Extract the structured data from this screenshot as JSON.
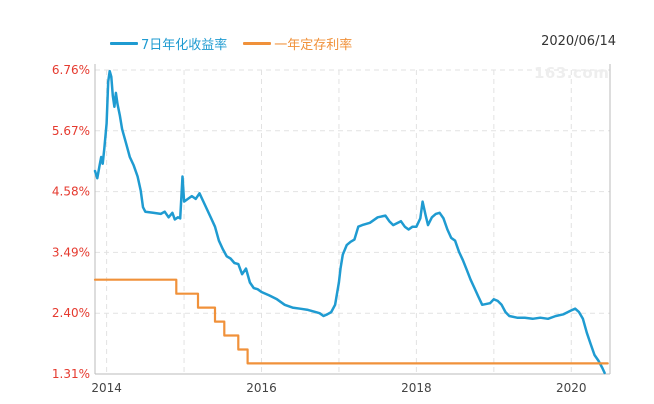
{
  "header": {
    "date": "2020/06/14",
    "watermark": "163.com"
  },
  "colors": {
    "yield_line": "#1f9bd1",
    "deposit_line": "#f0913a",
    "y_tick_text": "#e53a2f",
    "x_tick_text": "#444444",
    "grid": "#e2e2e2",
    "axis": "#bbbbbb"
  },
  "chart_data": {
    "type": "line",
    "title": "",
    "xlabel": "",
    "ylabel": "",
    "ylim": [
      1.31,
      6.76
    ],
    "xlim": [
      2013.85,
      2020.5
    ],
    "y_ticks": [
      "6.76%",
      "5.67%",
      "4.58%",
      "3.49%",
      "2.40%",
      "1.31%"
    ],
    "y_tick_values": [
      6.76,
      5.67,
      4.58,
      3.49,
      2.4,
      1.31
    ],
    "x_ticks": [
      "2014",
      "2016",
      "2018",
      "2020"
    ],
    "x_tick_values": [
      2014,
      2016,
      2018,
      2020
    ],
    "grid": true,
    "legend_position": "top-left",
    "series": [
      {
        "name": "7日年化收益率",
        "color": "#1f9bd1",
        "step": false,
        "points": [
          [
            2013.85,
            4.95
          ],
          [
            2013.88,
            4.82
          ],
          [
            2013.91,
            5.05
          ],
          [
            2013.93,
            5.2
          ],
          [
            2013.95,
            5.08
          ],
          [
            2013.97,
            5.35
          ],
          [
            2014.0,
            5.8
          ],
          [
            2014.02,
            6.55
          ],
          [
            2014.04,
            6.74
          ],
          [
            2014.06,
            6.64
          ],
          [
            2014.08,
            6.3
          ],
          [
            2014.1,
            6.1
          ],
          [
            2014.12,
            6.35
          ],
          [
            2014.14,
            6.15
          ],
          [
            2014.17,
            5.95
          ],
          [
            2014.2,
            5.7
          ],
          [
            2014.25,
            5.45
          ],
          [
            2014.3,
            5.2
          ],
          [
            2014.35,
            5.05
          ],
          [
            2014.4,
            4.85
          ],
          [
            2014.44,
            4.6
          ],
          [
            2014.47,
            4.3
          ],
          [
            2014.5,
            4.22
          ],
          [
            2014.6,
            4.2
          ],
          [
            2014.7,
            4.18
          ],
          [
            2014.75,
            4.22
          ],
          [
            2014.8,
            4.12
          ],
          [
            2014.85,
            4.2
          ],
          [
            2014.88,
            4.08
          ],
          [
            2014.92,
            4.12
          ],
          [
            2014.95,
            4.1
          ],
          [
            2014.98,
            4.85
          ],
          [
            2015.0,
            4.4
          ],
          [
            2015.05,
            4.45
          ],
          [
            2015.1,
            4.5
          ],
          [
            2015.15,
            4.45
          ],
          [
            2015.2,
            4.55
          ],
          [
            2015.25,
            4.4
          ],
          [
            2015.3,
            4.25
          ],
          [
            2015.35,
            4.1
          ],
          [
            2015.4,
            3.95
          ],
          [
            2015.45,
            3.7
          ],
          [
            2015.5,
            3.55
          ],
          [
            2015.55,
            3.42
          ],
          [
            2015.6,
            3.38
          ],
          [
            2015.65,
            3.3
          ],
          [
            2015.7,
            3.28
          ],
          [
            2015.75,
            3.1
          ],
          [
            2015.8,
            3.2
          ],
          [
            2015.85,
            2.95
          ],
          [
            2015.9,
            2.85
          ],
          [
            2015.95,
            2.83
          ],
          [
            2016.0,
            2.78
          ],
          [
            2016.1,
            2.72
          ],
          [
            2016.2,
            2.65
          ],
          [
            2016.3,
            2.55
          ],
          [
            2016.4,
            2.5
          ],
          [
            2016.5,
            2.48
          ],
          [
            2016.6,
            2.46
          ],
          [
            2016.7,
            2.42
          ],
          [
            2016.75,
            2.4
          ],
          [
            2016.8,
            2.35
          ],
          [
            2016.85,
            2.38
          ],
          [
            2016.9,
            2.42
          ],
          [
            2016.95,
            2.55
          ],
          [
            2017.0,
            2.95
          ],
          [
            2017.02,
            3.2
          ],
          [
            2017.05,
            3.45
          ],
          [
            2017.1,
            3.62
          ],
          [
            2017.15,
            3.68
          ],
          [
            2017.2,
            3.72
          ],
          [
            2017.25,
            3.95
          ],
          [
            2017.3,
            3.98
          ],
          [
            2017.4,
            4.02
          ],
          [
            2017.5,
            4.12
          ],
          [
            2017.6,
            4.15
          ],
          [
            2017.65,
            4.05
          ],
          [
            2017.7,
            3.98
          ],
          [
            2017.8,
            4.05
          ],
          [
            2017.85,
            3.95
          ],
          [
            2017.9,
            3.9
          ],
          [
            2017.95,
            3.95
          ],
          [
            2018.0,
            3.95
          ],
          [
            2018.05,
            4.1
          ],
          [
            2018.08,
            4.4
          ],
          [
            2018.12,
            4.15
          ],
          [
            2018.15,
            3.98
          ],
          [
            2018.2,
            4.12
          ],
          [
            2018.25,
            4.18
          ],
          [
            2018.3,
            4.2
          ],
          [
            2018.35,
            4.1
          ],
          [
            2018.4,
            3.9
          ],
          [
            2018.45,
            3.75
          ],
          [
            2018.5,
            3.7
          ],
          [
            2018.55,
            3.5
          ],
          [
            2018.6,
            3.35
          ],
          [
            2018.65,
            3.18
          ],
          [
            2018.7,
            3.0
          ],
          [
            2018.75,
            2.85
          ],
          [
            2018.8,
            2.7
          ],
          [
            2018.85,
            2.55
          ],
          [
            2018.95,
            2.58
          ],
          [
            2019.0,
            2.65
          ],
          [
            2019.05,
            2.62
          ],
          [
            2019.1,
            2.55
          ],
          [
            2019.15,
            2.42
          ],
          [
            2019.2,
            2.35
          ],
          [
            2019.3,
            2.32
          ],
          [
            2019.4,
            2.32
          ],
          [
            2019.5,
            2.3
          ],
          [
            2019.6,
            2.32
          ],
          [
            2019.7,
            2.3
          ],
          [
            2019.8,
            2.35
          ],
          [
            2019.9,
            2.38
          ],
          [
            2020.0,
            2.45
          ],
          [
            2020.05,
            2.48
          ],
          [
            2020.1,
            2.42
          ],
          [
            2020.15,
            2.3
          ],
          [
            2020.2,
            2.05
          ],
          [
            2020.25,
            1.85
          ],
          [
            2020.3,
            1.65
          ],
          [
            2020.35,
            1.55
          ],
          [
            2020.4,
            1.42
          ],
          [
            2020.43,
            1.33
          ]
        ]
      },
      {
        "name": "一年定存利率",
        "color": "#f0913a",
        "step": true,
        "points": [
          [
            2013.85,
            3.0
          ],
          [
            2014.9,
            3.0
          ],
          [
            2014.9,
            2.75
          ],
          [
            2015.18,
            2.75
          ],
          [
            2015.18,
            2.5
          ],
          [
            2015.4,
            2.5
          ],
          [
            2015.4,
            2.25
          ],
          [
            2015.52,
            2.25
          ],
          [
            2015.52,
            2.0
          ],
          [
            2015.7,
            2.0
          ],
          [
            2015.7,
            1.75
          ],
          [
            2015.82,
            1.75
          ],
          [
            2015.82,
            1.5
          ],
          [
            2020.47,
            1.5
          ]
        ]
      }
    ]
  }
}
